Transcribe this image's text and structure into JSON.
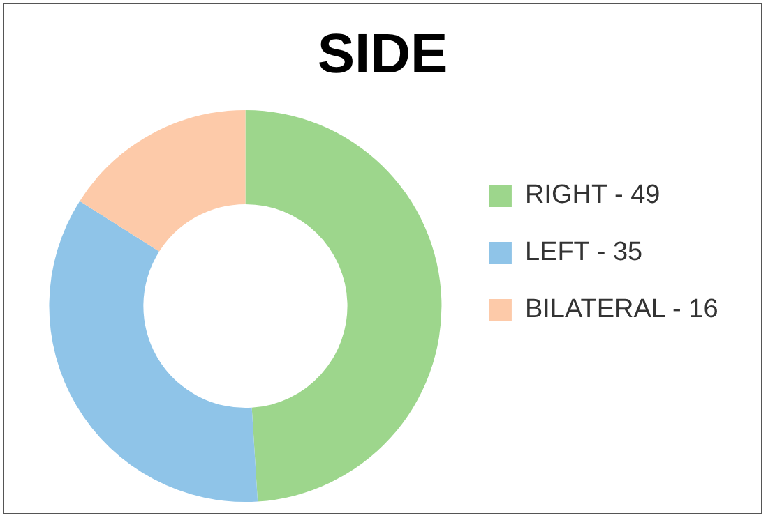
{
  "chart_data": {
    "type": "donut",
    "title": "SIDE",
    "categories": [
      "RIGHT - 49",
      "LEFT - 35",
      "BILATERAL - 16"
    ],
    "values": [
      49,
      35,
      16
    ],
    "colors": [
      "#9dd68c",
      "#8fc4e8",
      "#fdcaa9"
    ],
    "legend": "right"
  }
}
